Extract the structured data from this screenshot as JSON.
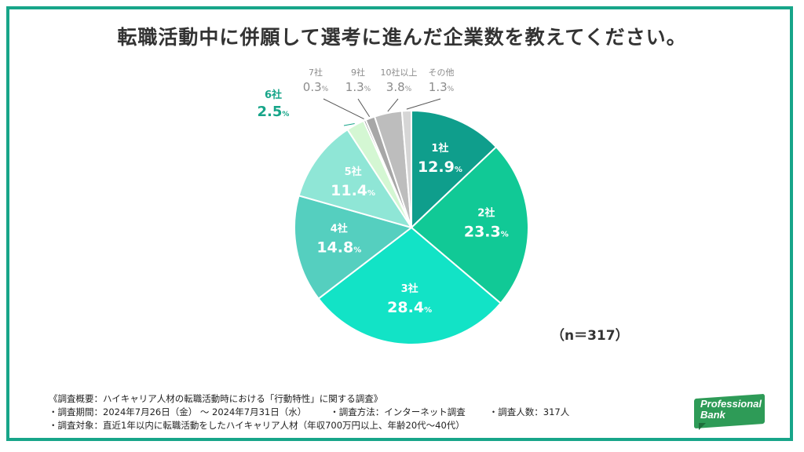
{
  "title": "転職活動中に併願して選考に進んだ企業数を教えてください。",
  "sample_size": "（n＝317）",
  "chart_data": {
    "type": "pie",
    "title": "転職活動中に併願して選考に進んだ企業数を教えてください。",
    "unit": "%",
    "slices": [
      {
        "label": "1社",
        "value": 12.9,
        "color": "#0f9e8c"
      },
      {
        "label": "2社",
        "value": 23.3,
        "color": "#11c996"
      },
      {
        "label": "3社",
        "value": 28.4,
        "color": "#12e3c6"
      },
      {
        "label": "4社",
        "value": 14.8,
        "color": "#55cfbf"
      },
      {
        "label": "5社",
        "value": 11.4,
        "color": "#8fe6d6"
      },
      {
        "label": "6社",
        "value": 2.5,
        "color": "#d4f7d3"
      },
      {
        "label": "7社",
        "value": 0.3,
        "color": "#8e8e8e"
      },
      {
        "label": "9社",
        "value": 1.3,
        "color": "#a7a7a7"
      },
      {
        "label": "10社以上",
        "value": 3.8,
        "color": "#bdbdbd"
      },
      {
        "label": "その他",
        "value": 1.3,
        "color": "#d6d6d6"
      }
    ],
    "label_colors": {
      "inside": "#ffffff",
      "six": "#17a589",
      "outside": "#8c8c8c"
    }
  },
  "notes": {
    "line1": "《調査概要：ハイキャリア人材の転職活動時における「行動特性」に関する調査》",
    "line2a": "・調査期間：2024年7月26日（金） 〜 2024年7月31日（水）",
    "line2b": "・調査方法：インターネット調査",
    "line2c": "・調査人数：317人",
    "line3": "・調査対象：直近1年以内に転職活動をしたハイキャリア人材（年収700万円以上、年齢20代〜40代）"
  },
  "logo": {
    "line1": "Professional",
    "line2": "Bank"
  }
}
